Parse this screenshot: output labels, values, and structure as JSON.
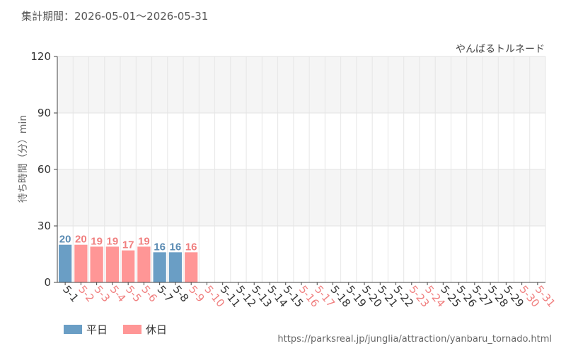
{
  "period_text": "集計期間：2026-05-01～2026-05-31",
  "source_url": "https://parksreal.jp/junglia/attraction/yanbaru_tornado.html",
  "colors": {
    "weekday": "#6a9ec5",
    "holiday": "#ff9696",
    "weekday_text": "#5a8bb3",
    "holiday_text": "#f07f7f",
    "axis_text": "#333333"
  },
  "legend": {
    "weekday_label": "平日",
    "holiday_label": "休日"
  },
  "chart_data": {
    "type": "bar",
    "title": "やんばるトルネード",
    "ylabel": "待ち時間（分）min",
    "xlabel": "",
    "ylim": [
      0,
      120
    ],
    "yticks": [
      0,
      30,
      60,
      90,
      120
    ],
    "grid": true,
    "categories": [
      "5-1",
      "5-2",
      "5-3",
      "5-4",
      "5-5",
      "5-6",
      "5-7",
      "5-8",
      "5-9",
      "5-10",
      "5-11",
      "5-12",
      "5-13",
      "5-14",
      "5-15",
      "5-16",
      "5-17",
      "5-18",
      "5-19",
      "5-20",
      "5-21",
      "5-22",
      "5-23",
      "5-24",
      "5-25",
      "5-26",
      "5-27",
      "5-28",
      "5-29",
      "5-30",
      "5-31"
    ],
    "day_types": [
      "weekday",
      "holiday",
      "holiday",
      "holiday",
      "holiday",
      "holiday",
      "weekday",
      "weekday",
      "holiday",
      "holiday",
      "weekday",
      "weekday",
      "weekday",
      "weekday",
      "weekday",
      "holiday",
      "holiday",
      "weekday",
      "weekday",
      "weekday",
      "weekday",
      "weekday",
      "holiday",
      "holiday",
      "weekday",
      "weekday",
      "weekday",
      "weekday",
      "weekday",
      "holiday",
      "holiday"
    ],
    "values": [
      20,
      20,
      19,
      19,
      17,
      19,
      16,
      16,
      16,
      null,
      null,
      null,
      null,
      null,
      null,
      null,
      null,
      null,
      null,
      null,
      null,
      null,
      null,
      null,
      null,
      null,
      null,
      null,
      null,
      null,
      null
    ]
  }
}
